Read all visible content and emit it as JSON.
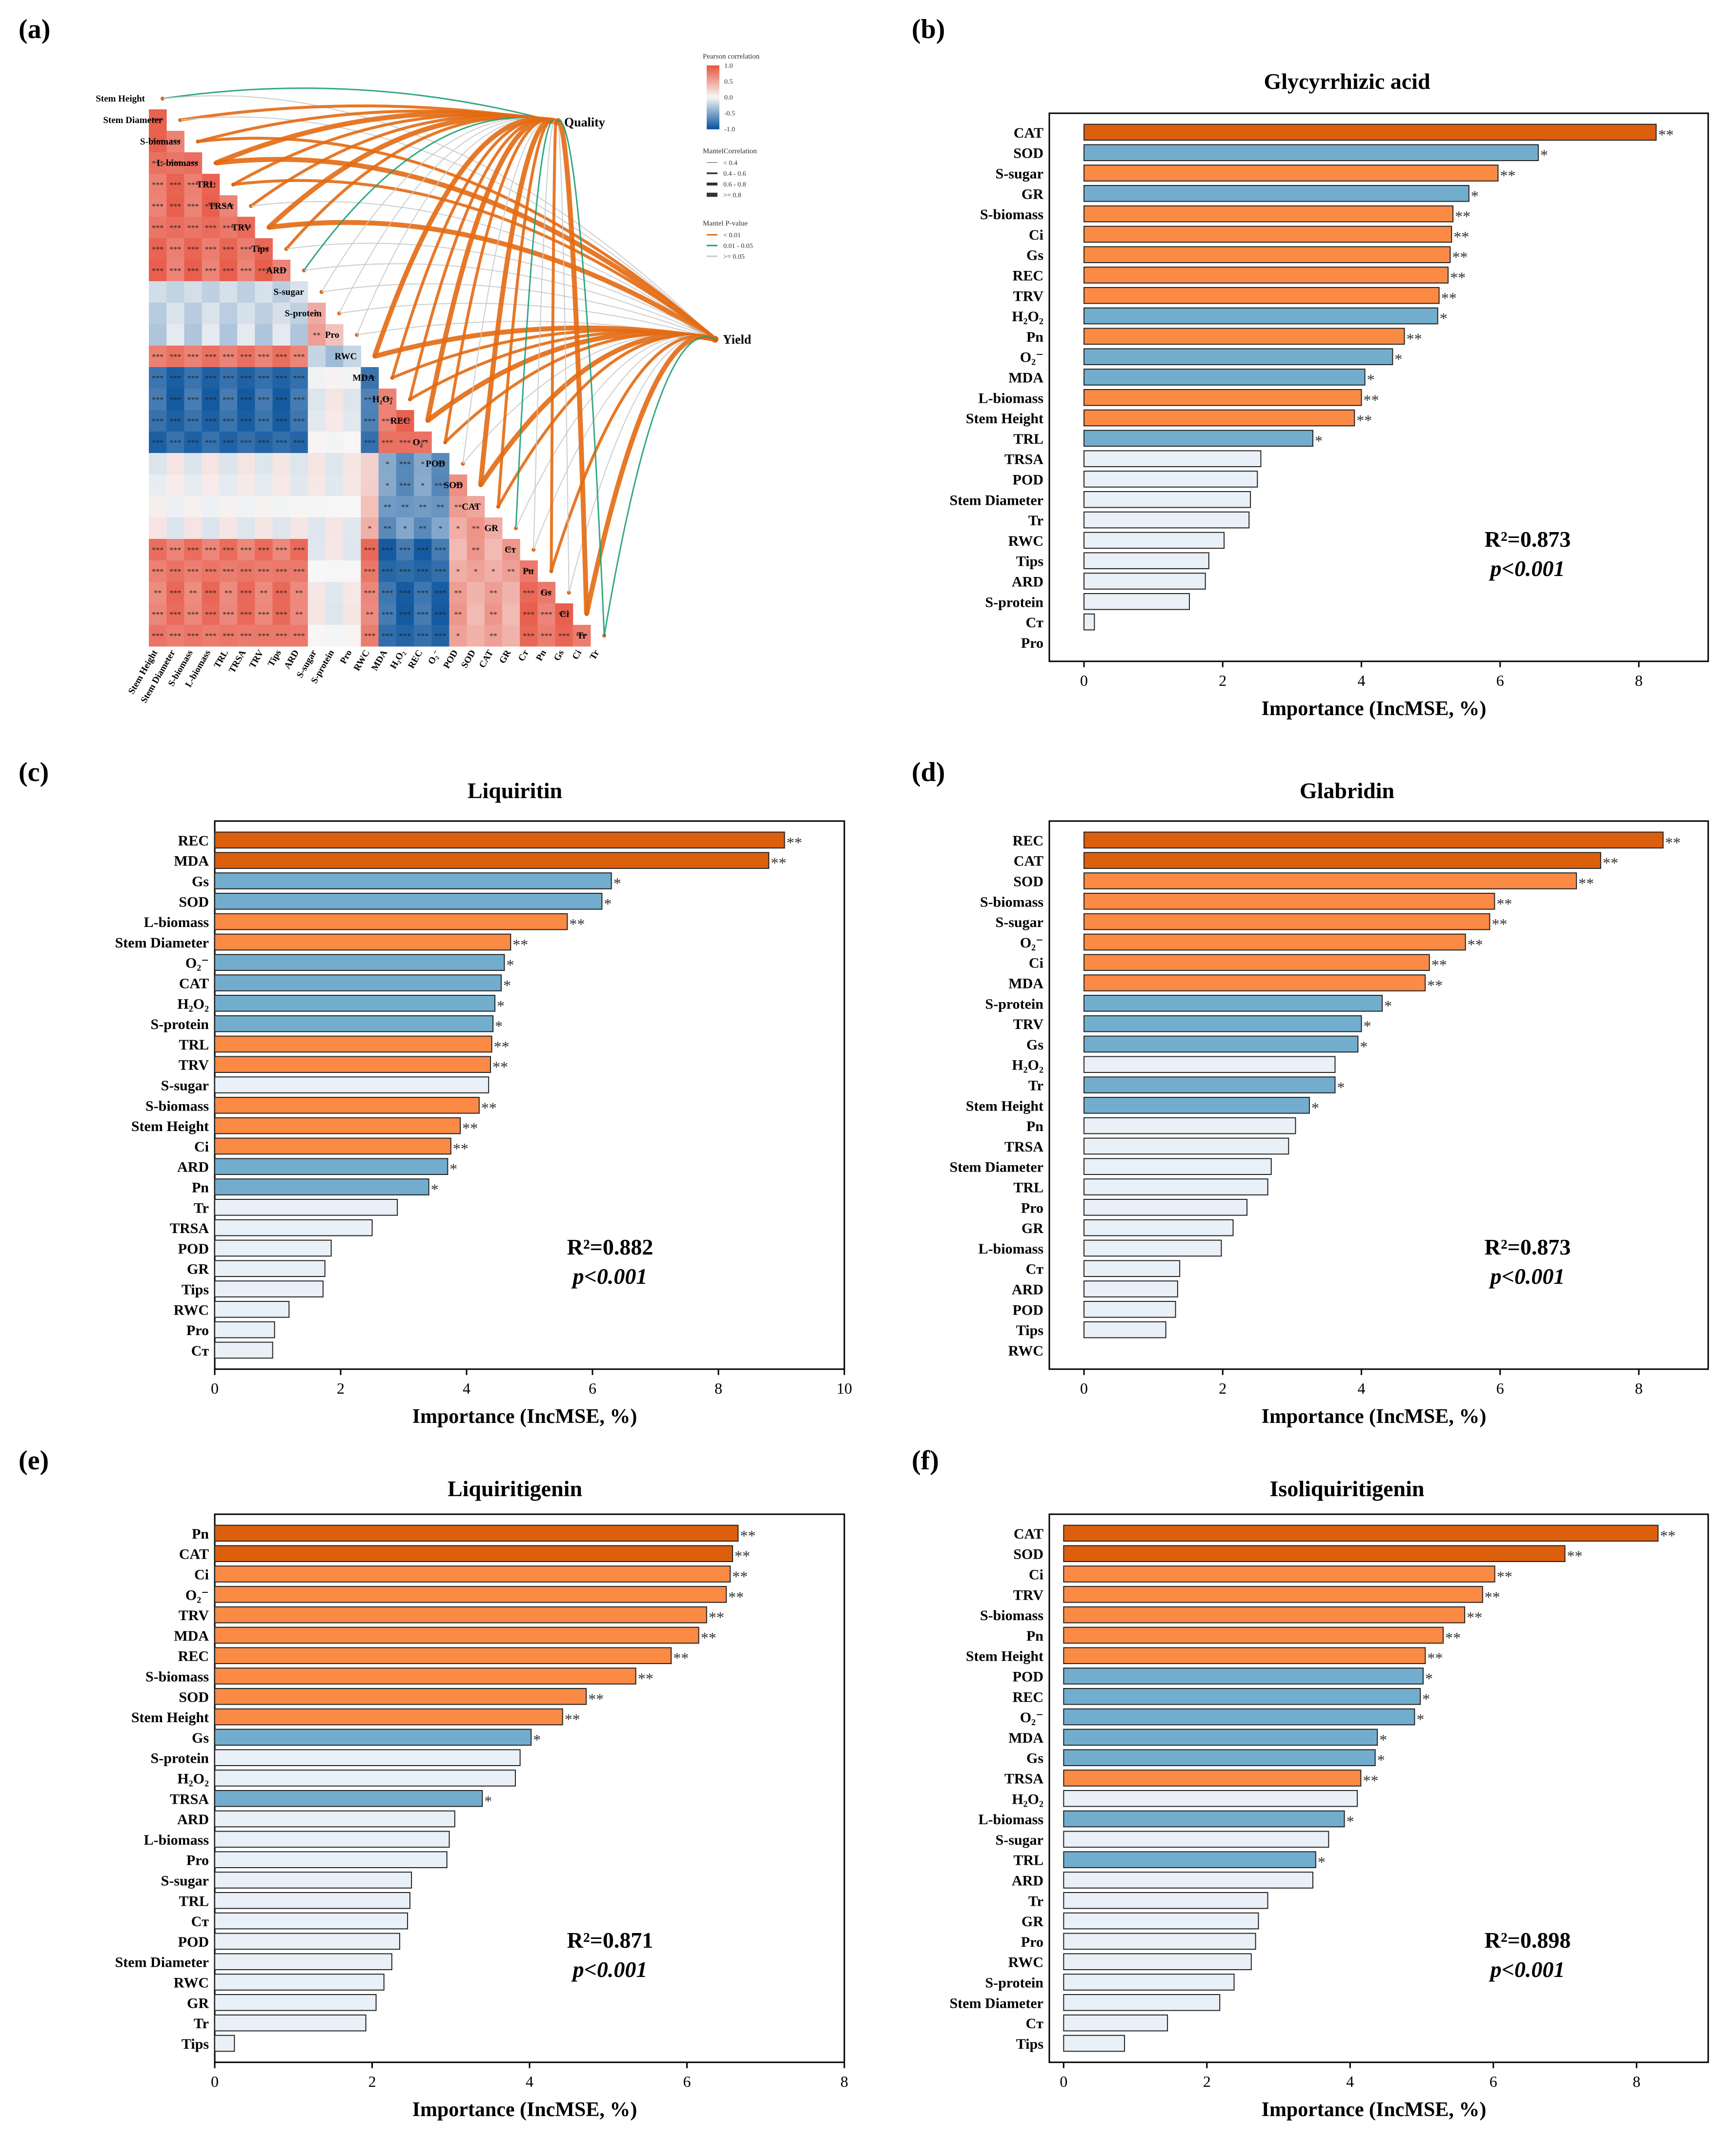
{
  "panel_labels": [
    "(a)",
    "(b)",
    "(c)",
    "(d)",
    "(e)",
    "(f)"
  ],
  "colors": {
    "dark_orange": "#dc5f0e",
    "orange": "#fb8a45",
    "blue": "#73adce",
    "pale": "#e9f0f7",
    "edge": "#222222"
  },
  "heatmap": {
    "variables": [
      "Stem Height",
      "Stem Diameter",
      "S-biomass",
      "L-biomass",
      "TRL",
      "TRSA",
      "TRV",
      "Tips",
      "ARD",
      "S-sugar",
      "S-protein",
      "Pro",
      "RWC",
      "MDA",
      "H₂O₂",
      "REC",
      "O₂⁻",
      "POD",
      "SOD",
      "CAT",
      "GR",
      "Cᴛ",
      "Pn",
      "Gs",
      "Ci",
      "Tr"
    ],
    "targets": [
      "Quality",
      "Yield"
    ],
    "legend": {
      "pearson_title": "Pearson correlation",
      "pearson_ticks": [
        "1.0",
        "0.5",
        "0.0",
        "-0.5",
        "-1.0"
      ],
      "mantel_r_title": "MantelCorrelation",
      "mantel_r_items": [
        "< 0.4",
        "0.4 - 0.6",
        "0.6 - 0.8",
        ">= 0.8"
      ],
      "mantel_p_title": "Mantel P-value",
      "mantel_p_items": [
        "< 0.01",
        "0.01 - 0.05",
        ">= 0.05"
      ]
    }
  },
  "chart_data": [
    {
      "panel": "(b)",
      "type": "bar",
      "orientation": "horizontal",
      "title": "Glycyrrhizic acid",
      "xlabel": "Importance (IncMSE, %)",
      "xlim": [
        -0.5,
        9
      ],
      "xticks": [
        0,
        2,
        4,
        6,
        8
      ],
      "r2": "R²=0.873",
      "p_value": "p<0.001",
      "categories": [
        "CAT",
        "SOD",
        "S-sugar",
        "GR",
        "S-biomass",
        "Ci",
        "Gs",
        "REC",
        "TRV",
        "H₂O₂",
        "Pn",
        "O₂⁻",
        "MDA",
        "L-biomass",
        "Stem Height",
        "TRL",
        "TRSA",
        "POD",
        "Stem Diameter",
        "Tr",
        "RWC",
        "Tips",
        "ARD",
        "S-protein",
        "Cᴛ",
        "Pro"
      ],
      "values": [
        8.25,
        6.55,
        5.97,
        5.55,
        5.32,
        5.3,
        5.28,
        5.25,
        5.12,
        5.1,
        4.62,
        4.45,
        4.05,
        4.0,
        3.9,
        3.3,
        2.55,
        2.5,
        2.4,
        2.38,
        2.02,
        1.8,
        1.75,
        1.52,
        0.15,
        0.0
      ],
      "colors": [
        "dark_orange",
        "blue",
        "orange",
        "blue",
        "orange",
        "orange",
        "orange",
        "orange",
        "orange",
        "blue",
        "orange",
        "blue",
        "blue",
        "orange",
        "orange",
        "blue",
        "pale",
        "pale",
        "pale",
        "pale",
        "pale",
        "pale",
        "pale",
        "pale",
        "pale",
        "pale"
      ],
      "significance": [
        "**",
        "*",
        "**",
        "*",
        "**",
        "**",
        "**",
        "**",
        "**",
        "*",
        "**",
        "*",
        "*",
        "**",
        "**",
        "*",
        "",
        "",
        "",
        "",
        "",
        "",
        "",
        "",
        "",
        ""
      ]
    },
    {
      "panel": "(c)",
      "type": "bar",
      "orientation": "horizontal",
      "title": "Liquiritin",
      "xlabel": "Importance (IncMSE, %)",
      "xlim": [
        0,
        10
      ],
      "xticks": [
        0,
        2,
        4,
        6,
        8,
        10
      ],
      "r2": "R²=0.882",
      "p_value": "p<0.001",
      "categories": [
        "REC",
        "MDA",
        "Gs",
        "SOD",
        "L-biomass",
        "Stem Diameter",
        "O₂⁻",
        "CAT",
        "H₂O₂",
        "S-protein",
        "TRL",
        "TRV",
        "S-sugar",
        "S-biomass",
        "Stem Height",
        "Ci",
        "ARD",
        "Pn",
        "Tr",
        "TRSA",
        "POD",
        "GR",
        "Tips",
        "RWC",
        "Pro",
        "Cᴛ"
      ],
      "values": [
        9.05,
        8.8,
        6.3,
        6.15,
        5.6,
        4.7,
        4.6,
        4.55,
        4.45,
        4.42,
        4.4,
        4.38,
        4.35,
        4.2,
        3.9,
        3.75,
        3.7,
        3.4,
        2.9,
        2.5,
        1.85,
        1.75,
        1.72,
        1.18,
        0.95,
        0.92
      ],
      "colors": [
        "dark_orange",
        "dark_orange",
        "blue",
        "blue",
        "orange",
        "orange",
        "blue",
        "blue",
        "blue",
        "blue",
        "orange",
        "orange",
        "pale",
        "orange",
        "orange",
        "orange",
        "blue",
        "blue",
        "pale",
        "pale",
        "pale",
        "pale",
        "pale",
        "pale",
        "pale",
        "pale"
      ],
      "significance": [
        "**",
        "**",
        "*",
        "*",
        "**",
        "**",
        "*",
        "*",
        "*",
        "*",
        "**",
        "**",
        "",
        "**",
        "**",
        "**",
        "*",
        "*",
        "",
        "",
        "",
        "",
        "",
        "",
        "",
        ""
      ]
    },
    {
      "panel": "(d)",
      "type": "bar",
      "orientation": "horizontal",
      "title": "Glabridin",
      "xlabel": "Importance (IncMSE, %)",
      "xlim": [
        -0.5,
        9
      ],
      "xticks": [
        0,
        2,
        4,
        6,
        8
      ],
      "r2": "R²=0.873",
      "p_value": "p<0.001",
      "categories": [
        "REC",
        "CAT",
        "SOD",
        "S-biomass",
        "S-sugar",
        "O₂⁻",
        "Ci",
        "MDA",
        "S-protein",
        "TRV",
        "Gs",
        "H₂O₂",
        "Tr",
        "Stem Height",
        "Pn",
        "TRSA",
        "Stem Diameter",
        "TRL",
        "Pro",
        "GR",
        "L-biomass",
        "Cᴛ",
        "ARD",
        "POD",
        "Tips",
        "RWC"
      ],
      "values": [
        8.35,
        7.45,
        7.1,
        5.92,
        5.85,
        5.5,
        4.98,
        4.92,
        4.3,
        4.0,
        3.95,
        3.62,
        3.62,
        3.25,
        3.05,
        2.95,
        2.7,
        2.65,
        2.35,
        2.15,
        1.98,
        1.38,
        1.35,
        1.32,
        1.18,
        0.0
      ],
      "colors": [
        "dark_orange",
        "dark_orange",
        "orange",
        "orange",
        "orange",
        "orange",
        "orange",
        "orange",
        "blue",
        "blue",
        "blue",
        "pale",
        "blue",
        "blue",
        "pale",
        "pale",
        "pale",
        "pale",
        "pale",
        "pale",
        "pale",
        "pale",
        "pale",
        "pale",
        "pale",
        "pale"
      ],
      "significance": [
        "**",
        "**",
        "**",
        "**",
        "**",
        "**",
        "**",
        "**",
        "*",
        "*",
        "*",
        "",
        "*",
        "*",
        "",
        "",
        "",
        "",
        "",
        "",
        "",
        "",
        "",
        "",
        "",
        ""
      ]
    },
    {
      "panel": "(e)",
      "type": "bar",
      "orientation": "horizontal",
      "title": "Liquiritigenin",
      "xlabel": "Importance (IncMSE, %)",
      "xlim": [
        0,
        8
      ],
      "xticks": [
        0,
        2,
        4,
        6,
        8
      ],
      "r2": "R²=0.871",
      "p_value": "p<0.001",
      "categories": [
        "Pn",
        "CAT",
        "Ci",
        "O₂⁻",
        "TRV",
        "MDA",
        "REC",
        "S-biomass",
        "SOD",
        "Stem Height",
        "Gs",
        "S-protein",
        "H₂O₂",
        "TRSA",
        "ARD",
        "L-biomass",
        "Pro",
        "S-sugar",
        "TRL",
        "Cᴛ",
        "POD",
        "Stem Diameter",
        "RWC",
        "GR",
        "Tr",
        "Tips"
      ],
      "values": [
        6.65,
        6.58,
        6.55,
        6.5,
        6.25,
        6.15,
        5.8,
        5.35,
        4.72,
        4.42,
        4.02,
        3.88,
        3.82,
        3.4,
        3.05,
        2.98,
        2.95,
        2.5,
        2.48,
        2.45,
        2.35,
        2.25,
        2.15,
        2.05,
        1.92,
        0.25
      ],
      "colors": [
        "dark_orange",
        "dark_orange",
        "orange",
        "orange",
        "orange",
        "orange",
        "orange",
        "orange",
        "orange",
        "orange",
        "blue",
        "pale",
        "pale",
        "blue",
        "pale",
        "pale",
        "pale",
        "pale",
        "pale",
        "pale",
        "pale",
        "pale",
        "pale",
        "pale",
        "pale",
        "pale"
      ],
      "significance": [
        "**",
        "**",
        "**",
        "**",
        "**",
        "**",
        "**",
        "**",
        "**",
        "**",
        "*",
        "",
        "",
        "*",
        "",
        "",
        "",
        "",
        "",
        "",
        "",
        "",
        "",
        "",
        "",
        ""
      ]
    },
    {
      "panel": "(f)",
      "type": "bar",
      "orientation": "horizontal",
      "title": "Isoliquiritigenin",
      "xlabel": "Importance (IncMSE, %)",
      "xlim": [
        -0.2,
        9
      ],
      "xticks": [
        0,
        2,
        4,
        6,
        8
      ],
      "r2": "R²=0.898",
      "p_value": "p<0.001",
      "categories": [
        "CAT",
        "SOD",
        "Ci",
        "TRV",
        "S-biomass",
        "Pn",
        "Stem Height",
        "POD",
        "REC",
        "O₂⁻",
        "MDA",
        "Gs",
        "TRSA",
        "H₂O₂",
        "L-biomass",
        "S-sugar",
        "TRL",
        "ARD",
        "Tr",
        "GR",
        "Pro",
        "RWC",
        "S-protein",
        "Stem Diameter",
        "Cᴛ",
        "Tips"
      ],
      "values": [
        8.3,
        7.0,
        6.02,
        5.85,
        5.6,
        5.3,
        5.05,
        5.02,
        4.98,
        4.9,
        4.38,
        4.35,
        4.15,
        4.1,
        3.92,
        3.7,
        3.52,
        3.48,
        2.85,
        2.72,
        2.68,
        2.62,
        2.38,
        2.18,
        1.45,
        0.85
      ],
      "colors": [
        "dark_orange",
        "dark_orange",
        "orange",
        "orange",
        "orange",
        "orange",
        "orange",
        "blue",
        "blue",
        "blue",
        "blue",
        "blue",
        "orange",
        "pale",
        "blue",
        "pale",
        "blue",
        "pale",
        "pale",
        "pale",
        "pale",
        "pale",
        "pale",
        "pale",
        "pale",
        "pale"
      ],
      "significance": [
        "**",
        "**",
        "**",
        "**",
        "**",
        "**",
        "**",
        "*",
        "*",
        "*",
        "*",
        "*",
        "**",
        "",
        "*",
        "",
        "*",
        "",
        "",
        "",
        "",
        "",
        "",
        "",
        "",
        ""
      ]
    }
  ]
}
